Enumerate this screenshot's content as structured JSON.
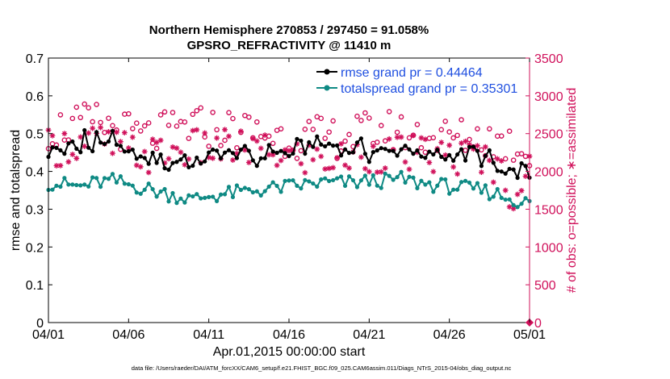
{
  "chart_data": {
    "type": "line",
    "title": "Northern Hemisphere 270853 / 297450 = 91.058%",
    "subtitle": "GPSRO_REFRACTIVITY @ 11410 m",
    "xlabel": "Apr.01,2015 00:00:00 start",
    "ylabel": "rmse and totalspread",
    "y2label": "# of obs: o=possible; ∗=assimilated",
    "footer": "data file: /Users/raeder/DAI/ATM_forcXX/CAM6_setup/f.e21.FHIST_BGC.f09_025.CAM6assim.011/Diags_NTrS_2015-04/obs_diag_output.nc",
    "xlim": [
      0,
      30
    ],
    "ylim": [
      0,
      0.7
    ],
    "y2lim": [
      0,
      3500
    ],
    "x_ticks": [
      0,
      5,
      10,
      15,
      20,
      25,
      30
    ],
    "x_tick_labels": [
      "04/01",
      "04/06",
      "04/11",
      "04/16",
      "04/21",
      "04/26",
      "05/01"
    ],
    "y_ticks": [
      0,
      0.1,
      0.2,
      0.3,
      0.4,
      0.5,
      0.6,
      0.7
    ],
    "y_tick_labels": [
      "0",
      "0.1",
      "0.2",
      "0.3",
      "0.4",
      "0.5",
      "0.6",
      "0.7"
    ],
    "y2_ticks": [
      0,
      500,
      1000,
      1500,
      2000,
      2500,
      3000,
      3500
    ],
    "y2_tick_labels": [
      "0",
      "500",
      "1000",
      "1500",
      "2000",
      "2500",
      "3000",
      "3500"
    ],
    "legend_position": "top-right",
    "series": [
      {
        "name": "rmse grand pr = 0.44464",
        "color": "#000000",
        "axis": "left",
        "anchors_x": [
          0,
          0.5,
          1.0,
          1.5,
          2.0,
          2.3,
          2.7,
          3.0,
          3.5,
          4.0,
          4.5,
          5.0,
          5.5,
          6.0,
          6.5,
          7.0,
          7.5,
          8.0,
          8.5,
          9.0,
          9.5,
          10.0,
          10.5,
          11.0,
          11.5,
          12.0,
          12.5,
          13.0,
          13.5,
          14.0,
          14.5,
          15.0,
          15.5,
          16.0,
          16.5,
          17.0,
          17.5,
          18.0,
          18.5,
          19.0,
          19.5,
          20.0,
          20.5,
          21.0,
          21.5,
          22.0,
          22.5,
          23.0,
          23.5,
          24.0,
          24.5,
          25.0,
          25.5,
          26.0,
          26.5,
          27.0,
          27.5,
          28.0,
          28.5,
          29.0,
          29.5,
          30.0
        ],
        "anchors_y": [
          0.45,
          0.46,
          0.455,
          0.47,
          0.45,
          0.52,
          0.44,
          0.5,
          0.46,
          0.51,
          0.45,
          0.44,
          0.45,
          0.42,
          0.44,
          0.43,
          0.41,
          0.43,
          0.44,
          0.41,
          0.43,
          0.44,
          0.45,
          0.45,
          0.44,
          0.46,
          0.44,
          0.42,
          0.45,
          0.46,
          0.45,
          0.44,
          0.47,
          0.46,
          0.48,
          0.47,
          0.47,
          0.47,
          0.45,
          0.46,
          0.47,
          0.44,
          0.46,
          0.45,
          0.45,
          0.46,
          0.47,
          0.44,
          0.43,
          0.45,
          0.44,
          0.44,
          0.45,
          0.44,
          0.46,
          0.43,
          0.44,
          0.4,
          0.39,
          0.39,
          0.41,
          0.39
        ],
        "amplitude": 0.018,
        "samples_per_day": 4
      },
      {
        "name": "totalspread grand pr = 0.35301",
        "color": "#0f8a84",
        "axis": "left",
        "anchors_x": [
          0,
          1,
          2,
          3,
          4,
          5,
          6,
          7,
          8,
          9,
          10,
          11,
          12,
          13,
          14,
          15,
          16,
          17,
          18,
          19,
          20,
          21,
          22,
          23,
          24,
          25,
          26,
          27,
          28,
          29,
          30
        ],
        "anchors_y": [
          0.37,
          0.365,
          0.36,
          0.37,
          0.375,
          0.365,
          0.355,
          0.345,
          0.335,
          0.325,
          0.335,
          0.34,
          0.345,
          0.35,
          0.355,
          0.36,
          0.365,
          0.37,
          0.37,
          0.37,
          0.375,
          0.375,
          0.38,
          0.37,
          0.365,
          0.36,
          0.355,
          0.35,
          0.34,
          0.325,
          0.315
        ],
        "amplitude": 0.02,
        "samples_per_day": 4
      },
      {
        "name": "possible",
        "marker": "o",
        "color": "#d0105a",
        "axis": "right",
        "anchors_x": [
          0,
          3,
          6,
          9,
          12,
          15,
          18,
          21,
          24,
          27,
          28,
          29,
          30
        ],
        "anchors_y": [
          2550,
          2650,
          2450,
          2600,
          2550,
          2450,
          2450,
          2550,
          2450,
          2450,
          2400,
          2350,
          2300
        ],
        "scatter": 280,
        "samples_per_day": 4
      },
      {
        "name": "assimilated",
        "marker": "*",
        "color": "#d0105a",
        "axis": "right",
        "anchors_x": [
          0,
          3,
          6,
          9,
          12,
          15,
          18,
          21,
          24,
          27,
          28,
          29,
          30
        ],
        "anchors_y": [
          2300,
          2400,
          2200,
          2300,
          2300,
          2200,
          2150,
          2250,
          2200,
          2200,
          2050,
          1700,
          2000
        ],
        "scatter": 260,
        "samples_per_day": 4
      }
    ]
  }
}
